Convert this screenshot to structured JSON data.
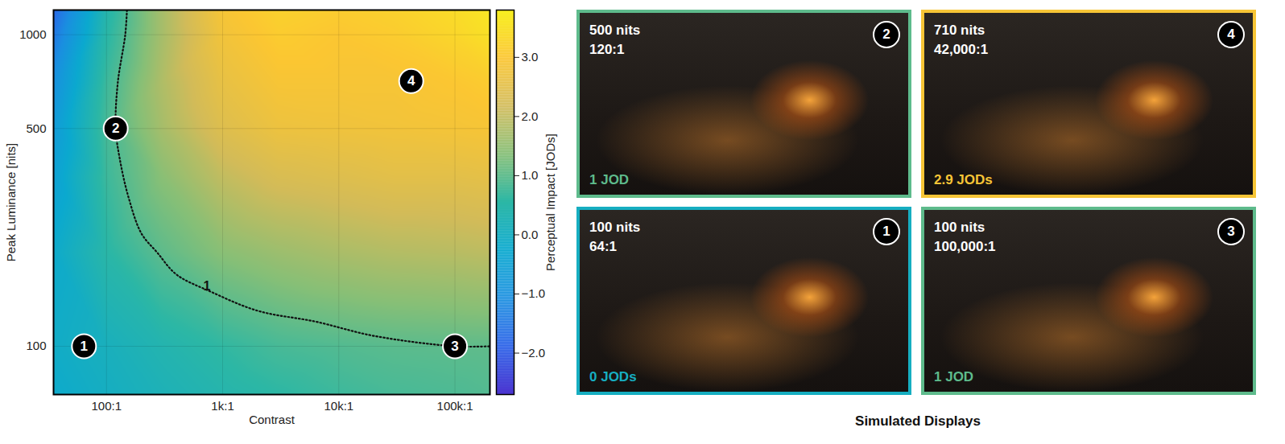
{
  "chart_data": {
    "type": "heatmap",
    "x_label": "Contrast",
    "y_label": "Peak Luminance [nits]",
    "log": true,
    "grid": true,
    "xlim": [
      35,
      200000
    ],
    "xticks": [
      {
        "value": 100,
        "label": "100:1"
      },
      {
        "value": 1000,
        "label": "1k:1"
      },
      {
        "value": 10000,
        "label": "10k:1"
      },
      {
        "value": 100000,
        "label": "100k:1"
      }
    ],
    "ylim": [
      70,
      1200
    ],
    "yticks": [
      100,
      500,
      1000
    ],
    "x": [
      35,
      100,
      300,
      1000,
      3000,
      10000,
      30000,
      100000,
      200000
    ],
    "y": [
      70,
      100,
      200,
      350,
      500,
      700,
      1000,
      1200
    ],
    "cells": [
      [
        -0.2,
        0.0,
        0.2,
        0.4,
        0.55,
        0.7,
        0.8,
        0.85,
        0.9
      ],
      [
        -0.1,
        0.1,
        0.35,
        0.6,
        0.8,
        0.9,
        0.97,
        1.0,
        1.02
      ],
      [
        -0.2,
        0.5,
        1.0,
        1.4,
        1.6,
        1.75,
        1.85,
        1.9,
        1.95
      ],
      [
        -0.5,
        0.7,
        1.4,
        2.0,
        2.3,
        2.4,
        2.5,
        2.5,
        2.55
      ],
      [
        -0.7,
        0.8,
        1.7,
        2.4,
        2.7,
        2.75,
        2.8,
        2.85,
        2.9
      ],
      [
        -1.0,
        0.7,
        1.8,
        2.6,
        2.9,
        2.9,
        2.9,
        3.0,
        3.1
      ],
      [
        -1.5,
        0.5,
        1.7,
        2.8,
        3.1,
        3.0,
        3.1,
        3.3,
        3.5
      ],
      [
        -1.8,
        0.4,
        1.7,
        2.9,
        3.2,
        3.1,
        3.2,
        3.4,
        3.6
      ]
    ],
    "colorbar": {
      "label": "Perceptual Impact [JODs]",
      "range": [
        -2.7,
        3.8
      ],
      "ticks": [
        -2,
        -1,
        0,
        1,
        2,
        3
      ]
    },
    "contour": {
      "level": 1,
      "x": [
        150,
        145,
        125,
        120,
        130,
        155,
        200,
        273,
        400,
        780,
        2000,
        6300,
        20000,
        100000,
        200000
      ],
      "y": [
        1200,
        1000,
        700,
        500,
        400,
        300,
        230,
        200,
        170,
        150,
        130,
        120,
        108,
        100,
        100
      ]
    },
    "displays_title": "Simulated Displays",
    "displays": [
      {
        "id": 2,
        "luminance": 500,
        "contrast": 120,
        "luminance_label": "500 nits",
        "contrast_label": "120:1",
        "jod": 1,
        "jod_label": "1 JOD"
      },
      {
        "id": 4,
        "luminance": 710,
        "contrast": 42000,
        "luminance_label": "710 nits",
        "contrast_label": "42,000:1",
        "jod": 2.9,
        "jod_label": "2.9 JODs"
      },
      {
        "id": 1,
        "luminance": 100,
        "contrast": 64,
        "luminance_label": "100 nits",
        "contrast_label": "64:1",
        "jod": 0,
        "jod_label": "0 JODs"
      },
      {
        "id": 3,
        "luminance": 100,
        "contrast": 100000,
        "luminance_label": "100 nits",
        "contrast_label": "100,000:1",
        "jod": 1,
        "jod_label": "1 JOD"
      }
    ]
  }
}
